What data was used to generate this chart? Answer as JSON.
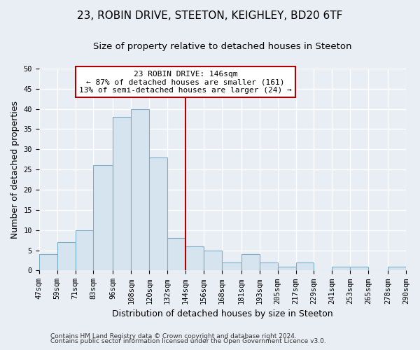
{
  "title": "23, ROBIN DRIVE, STEETON, KEIGHLEY, BD20 6TF",
  "subtitle": "Size of property relative to detached houses in Steeton",
  "xlabel": "Distribution of detached houses by size in Steeton",
  "ylabel": "Number of detached properties",
  "footnote1": "Contains HM Land Registry data © Crown copyright and database right 2024.",
  "footnote2": "Contains public sector information licensed under the Open Government Licence v3.0.",
  "bar_edges": [
    47,
    59,
    71,
    83,
    96,
    108,
    120,
    132,
    144,
    156,
    168,
    181,
    193,
    205,
    217,
    229,
    241,
    253,
    265,
    278,
    290
  ],
  "bar_heights": [
    4,
    7,
    10,
    26,
    38,
    40,
    28,
    8,
    6,
    5,
    2,
    4,
    2,
    1,
    2,
    0,
    1,
    1,
    0,
    1
  ],
  "tick_labels": [
    "47sqm",
    "59sqm",
    "71sqm",
    "83sqm",
    "96sqm",
    "108sqm",
    "120sqm",
    "132sqm",
    "144sqm",
    "156sqm",
    "168sqm",
    "181sqm",
    "193sqm",
    "205sqm",
    "217sqm",
    "229sqm",
    "241sqm",
    "253sqm",
    "265sqm",
    "278sqm",
    "290sqm"
  ],
  "bar_color": "#d6e4f0",
  "bar_edge_color": "#7aaec8",
  "vline_x": 144,
  "vline_color": "#aa0000",
  "annotation_title": "23 ROBIN DRIVE: 146sqm",
  "annotation_line1": "← 87% of detached houses are smaller (161)",
  "annotation_line2": "13% of semi-detached houses are larger (24) →",
  "annotation_box_edgecolor": "#aa0000",
  "annotation_box_facecolor": "#ffffff",
  "ylim": [
    0,
    50
  ],
  "yticks": [
    0,
    5,
    10,
    15,
    20,
    25,
    30,
    35,
    40,
    45,
    50
  ],
  "bg_color": "#e8eef4",
  "grid_color": "#ffffff",
  "title_fontsize": 11,
  "subtitle_fontsize": 9.5,
  "axis_label_fontsize": 9,
  "tick_fontsize": 7.5,
  "footnote_fontsize": 6.5
}
